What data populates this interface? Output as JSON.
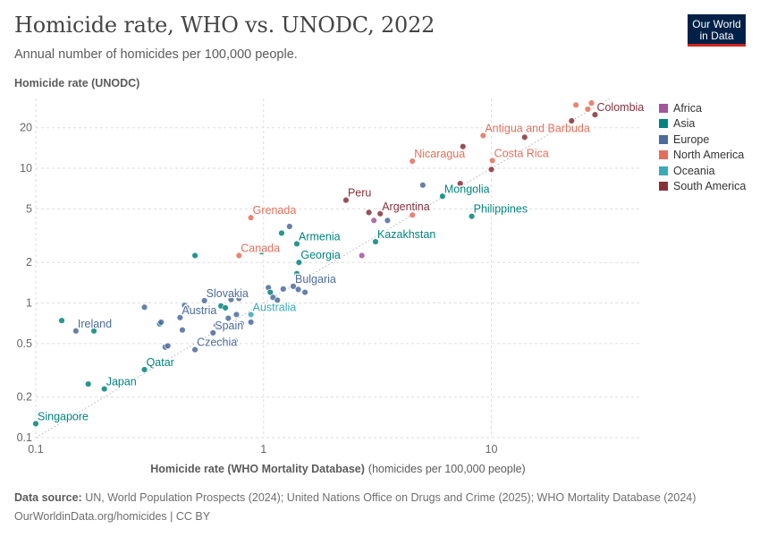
{
  "header": {
    "title": "Homicide rate, WHO vs. UNODC, 2022",
    "subtitle": "Annual number of homicides per 100,000 people.",
    "logo_line1": "Our World",
    "logo_line2": "in Data"
  },
  "footer": {
    "source_label": "Data source:",
    "source_text": "UN, World Population Prospects (2024); United Nations Office on Drugs and Crime (2025); WHO Mortality Database (2024)",
    "credit": "OurWorldinData.org/homicides | CC BY"
  },
  "chart_data": {
    "type": "scatter",
    "title": "Homicide rate, WHO vs. UNODC, 2022",
    "subtitle": "Annual number of homicides per 100,000 people.",
    "xlabel": "Homicide rate (WHO Mortality Database)",
    "xlabel_unit": "(homicides per 100,000 people)",
    "ylabel": "Homicide rate (UNODC)",
    "x_scale": "log",
    "y_scale": "log",
    "xlim": [
      0.1,
      45
    ],
    "ylim": [
      0.1,
      33
    ],
    "x_ticks": [
      {
        "value": 0.1,
        "label": "0.1"
      },
      {
        "value": 1,
        "label": "1"
      },
      {
        "value": 10,
        "label": "10"
      }
    ],
    "y_ticks": [
      {
        "value": 0.1,
        "label": "0.1"
      },
      {
        "value": 0.2,
        "label": "0.2"
      },
      {
        "value": 0.5,
        "label": "0.5"
      },
      {
        "value": 1,
        "label": "1"
      },
      {
        "value": 2,
        "label": "2"
      },
      {
        "value": 5,
        "label": "5"
      },
      {
        "value": 10,
        "label": "10"
      },
      {
        "value": 20,
        "label": "20"
      }
    ],
    "grid": true,
    "legend_position": "right",
    "regions": [
      {
        "name": "Africa",
        "color": "#a2559c"
      },
      {
        "name": "Asia",
        "color": "#00847e"
      },
      {
        "name": "Europe",
        "color": "#4c6a9c"
      },
      {
        "name": "North America",
        "color": "#e56e5a"
      },
      {
        "name": "Oceania",
        "color": "#38aaba"
      },
      {
        "name": "South America",
        "color": "#883039"
      }
    ],
    "points": [
      {
        "x": 0.1,
        "y": 0.127,
        "region": "Asia",
        "label": "Singapore"
      },
      {
        "x": 0.2,
        "y": 0.23,
        "region": "Asia",
        "label": "Japan"
      },
      {
        "x": 0.17,
        "y": 0.25,
        "region": "Asia"
      },
      {
        "x": 0.3,
        "y": 0.32,
        "region": "Asia",
        "label": "Qatar"
      },
      {
        "x": 0.15,
        "y": 0.62,
        "region": "Europe",
        "label": "Ireland"
      },
      {
        "x": 0.18,
        "y": 0.62,
        "region": "Asia"
      },
      {
        "x": 0.13,
        "y": 0.74,
        "region": "Asia"
      },
      {
        "x": 0.3,
        "y": 0.93,
        "region": "Europe"
      },
      {
        "x": 0.35,
        "y": 0.7,
        "region": "Asia"
      },
      {
        "x": 0.355,
        "y": 0.72,
        "region": "Europe"
      },
      {
        "x": 0.37,
        "y": 0.47,
        "region": "Europe"
      },
      {
        "x": 0.38,
        "y": 0.48,
        "region": "Europe"
      },
      {
        "x": 0.43,
        "y": 0.78,
        "region": "Europe",
        "label": "Austria"
      },
      {
        "x": 0.44,
        "y": 0.63,
        "region": "Europe"
      },
      {
        "x": 0.45,
        "y": 0.96,
        "region": "Europe"
      },
      {
        "x": 0.46,
        "y": 0.92,
        "region": "Europe"
      },
      {
        "x": 0.5,
        "y": 0.45,
        "region": "Europe",
        "label": "Czechia"
      },
      {
        "x": 0.55,
        "y": 1.04,
        "region": "Europe",
        "label": "Slovakia"
      },
      {
        "x": 0.6,
        "y": 0.6,
        "region": "Europe",
        "label": "Spain"
      },
      {
        "x": 0.62,
        "y": 0.68,
        "region": "Europe"
      },
      {
        "x": 0.65,
        "y": 0.95,
        "region": "Asia"
      },
      {
        "x": 0.68,
        "y": 0.92,
        "region": "Asia"
      },
      {
        "x": 0.7,
        "y": 0.77,
        "region": "Europe"
      },
      {
        "x": 0.72,
        "y": 1.06,
        "region": "Europe"
      },
      {
        "x": 0.75,
        "y": 0.52,
        "region": "Europe"
      },
      {
        "x": 0.76,
        "y": 0.82,
        "region": "Europe"
      },
      {
        "x": 0.78,
        "y": 1.08,
        "region": "Europe"
      },
      {
        "x": 0.8,
        "y": 0.7,
        "region": "Europe"
      },
      {
        "x": 0.88,
        "y": 0.72,
        "region": "Europe"
      },
      {
        "x": 0.88,
        "y": 0.82,
        "region": "Oceania",
        "label": "Australia"
      },
      {
        "x": 0.5,
        "y": 2.25,
        "region": "Asia"
      },
      {
        "x": 0.78,
        "y": 2.25,
        "region": "North America",
        "label": "Canada"
      },
      {
        "x": 0.98,
        "y": 2.4,
        "region": "Asia"
      },
      {
        "x": 0.88,
        "y": 4.3,
        "region": "North America",
        "label": "Grenada"
      },
      {
        "x": 1.05,
        "y": 1.3,
        "region": "Europe"
      },
      {
        "x": 1.07,
        "y": 1.2,
        "region": "Asia"
      },
      {
        "x": 1.1,
        "y": 1.1,
        "region": "Europe"
      },
      {
        "x": 1.15,
        "y": 1.05,
        "region": "Europe"
      },
      {
        "x": 1.22,
        "y": 1.27,
        "region": "Europe"
      },
      {
        "x": 1.35,
        "y": 1.33,
        "region": "Europe",
        "label": "Bulgaria"
      },
      {
        "x": 1.42,
        "y": 1.26,
        "region": "Europe"
      },
      {
        "x": 1.52,
        "y": 1.2,
        "region": "Europe"
      },
      {
        "x": 1.55,
        "y": 1.45,
        "region": "Europe"
      },
      {
        "x": 1.4,
        "y": 1.65,
        "region": "Asia"
      },
      {
        "x": 1.43,
        "y": 2.0,
        "region": "Asia",
        "label": "Georgia"
      },
      {
        "x": 1.4,
        "y": 2.75,
        "region": "Asia",
        "label": "Armenia"
      },
      {
        "x": 1.3,
        "y": 3.7,
        "region": "Europe"
      },
      {
        "x": 1.2,
        "y": 3.3,
        "region": "Asia"
      },
      {
        "x": 2.3,
        "y": 5.8,
        "region": "South America",
        "label": "Peru"
      },
      {
        "x": 2.7,
        "y": 2.25,
        "region": "Africa"
      },
      {
        "x": 2.9,
        "y": 4.7,
        "region": "South America"
      },
      {
        "x": 3.05,
        "y": 4.1,
        "region": "Africa"
      },
      {
        "x": 3.1,
        "y": 2.85,
        "region": "Asia",
        "label": "Kazakhstan"
      },
      {
        "x": 3.25,
        "y": 4.6,
        "region": "South America",
        "label": "Argentina"
      },
      {
        "x": 3.5,
        "y": 4.1,
        "region": "Europe"
      },
      {
        "x": 4.5,
        "y": 4.5,
        "region": "North America"
      },
      {
        "x": 4.5,
        "y": 11.3,
        "region": "North America",
        "label": "Nicaragua"
      },
      {
        "x": 5.0,
        "y": 7.5,
        "region": "Europe"
      },
      {
        "x": 6.1,
        "y": 6.2,
        "region": "Asia",
        "label": "Mongolia"
      },
      {
        "x": 7.3,
        "y": 7.7,
        "region": "South America"
      },
      {
        "x": 7.5,
        "y": 14.5,
        "region": "South America"
      },
      {
        "x": 8.2,
        "y": 4.4,
        "region": "Asia",
        "label": "Philippines"
      },
      {
        "x": 9.2,
        "y": 17.5,
        "region": "North America",
        "label": "Antigua and Barbuda"
      },
      {
        "x": 10.0,
        "y": 9.8,
        "region": "South America"
      },
      {
        "x": 10.1,
        "y": 11.4,
        "region": "North America",
        "label": "Costa Rica"
      },
      {
        "x": 14.0,
        "y": 17.0,
        "region": "South America"
      },
      {
        "x": 22.5,
        "y": 22.5,
        "region": "South America"
      },
      {
        "x": 23.5,
        "y": 29.5,
        "region": "North America"
      },
      {
        "x": 26.5,
        "y": 27.5,
        "region": "North America"
      },
      {
        "x": 27.5,
        "y": 30.5,
        "region": "North America"
      },
      {
        "x": 28.5,
        "y": 25.0,
        "region": "South America",
        "label": "Colombia"
      }
    ]
  }
}
